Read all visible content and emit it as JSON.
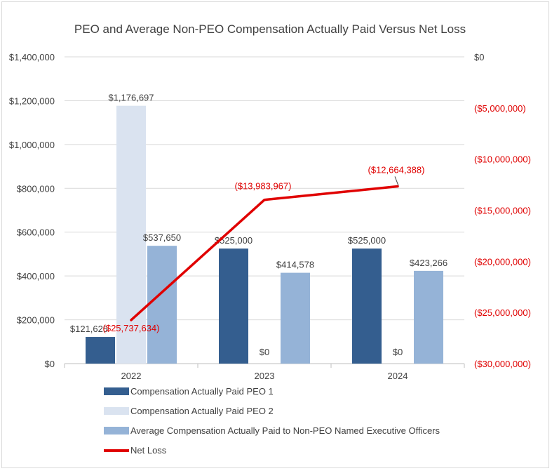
{
  "chart_data": {
    "type": "bar",
    "title": "PEO and Average Non-PEO Compensation Actually Paid Versus Net Loss",
    "categories": [
      "2022",
      "2023",
      "2024"
    ],
    "series": [
      {
        "name": "Compensation Actually Paid PEO 1",
        "color": "#345e8f",
        "values": [
          121625,
          525000,
          525000
        ],
        "labels": [
          "$121,625",
          "$525,000",
          "$525,000"
        ]
      },
      {
        "name": "Compensation Actually Paid PEO 2",
        "color": "#dae3f0",
        "values": [
          1176697,
          0,
          0
        ],
        "labels": [
          "$1,176,697",
          "$0",
          "$0"
        ]
      },
      {
        "name": "Average Compensation Actually Paid to Non-PEO Named Executive Officers",
        "color": "#95b3d7",
        "values": [
          537650,
          414578,
          423266
        ],
        "labels": [
          "$537,650",
          "$414,578",
          "$423,266"
        ]
      }
    ],
    "line": {
      "name": "Net Loss",
      "color": "#e00000",
      "axis": "right",
      "values": [
        -25737634,
        -13983967,
        -12664388
      ],
      "labels": [
        "($25,737,634)",
        "($13,983,967)",
        "($12,664,388)"
      ]
    },
    "left_axis": {
      "ylim": [
        0,
        1400000
      ],
      "ticks": [
        0,
        200000,
        400000,
        600000,
        800000,
        1000000,
        1200000,
        1400000
      ],
      "tick_labels": [
        "$0",
        "$200,000",
        "$400,000",
        "$600,000",
        "$800,000",
        "$1,000,000",
        "$1,200,000",
        "$1,400,000"
      ],
      "color": "#404040"
    },
    "right_axis": {
      "ylim": [
        -30000000,
        0
      ],
      "ticks": [
        0,
        -5000000,
        -10000000,
        -15000000,
        -20000000,
        -25000000,
        -30000000
      ],
      "tick_labels": [
        "$0",
        "($5,000,000)",
        "($10,000,000)",
        "($15,000,000)",
        "($20,000,000)",
        "($25,000,000)",
        "($30,000,000)"
      ],
      "color": "#e00000"
    },
    "grid": true,
    "legend_position": "bottom-left"
  }
}
